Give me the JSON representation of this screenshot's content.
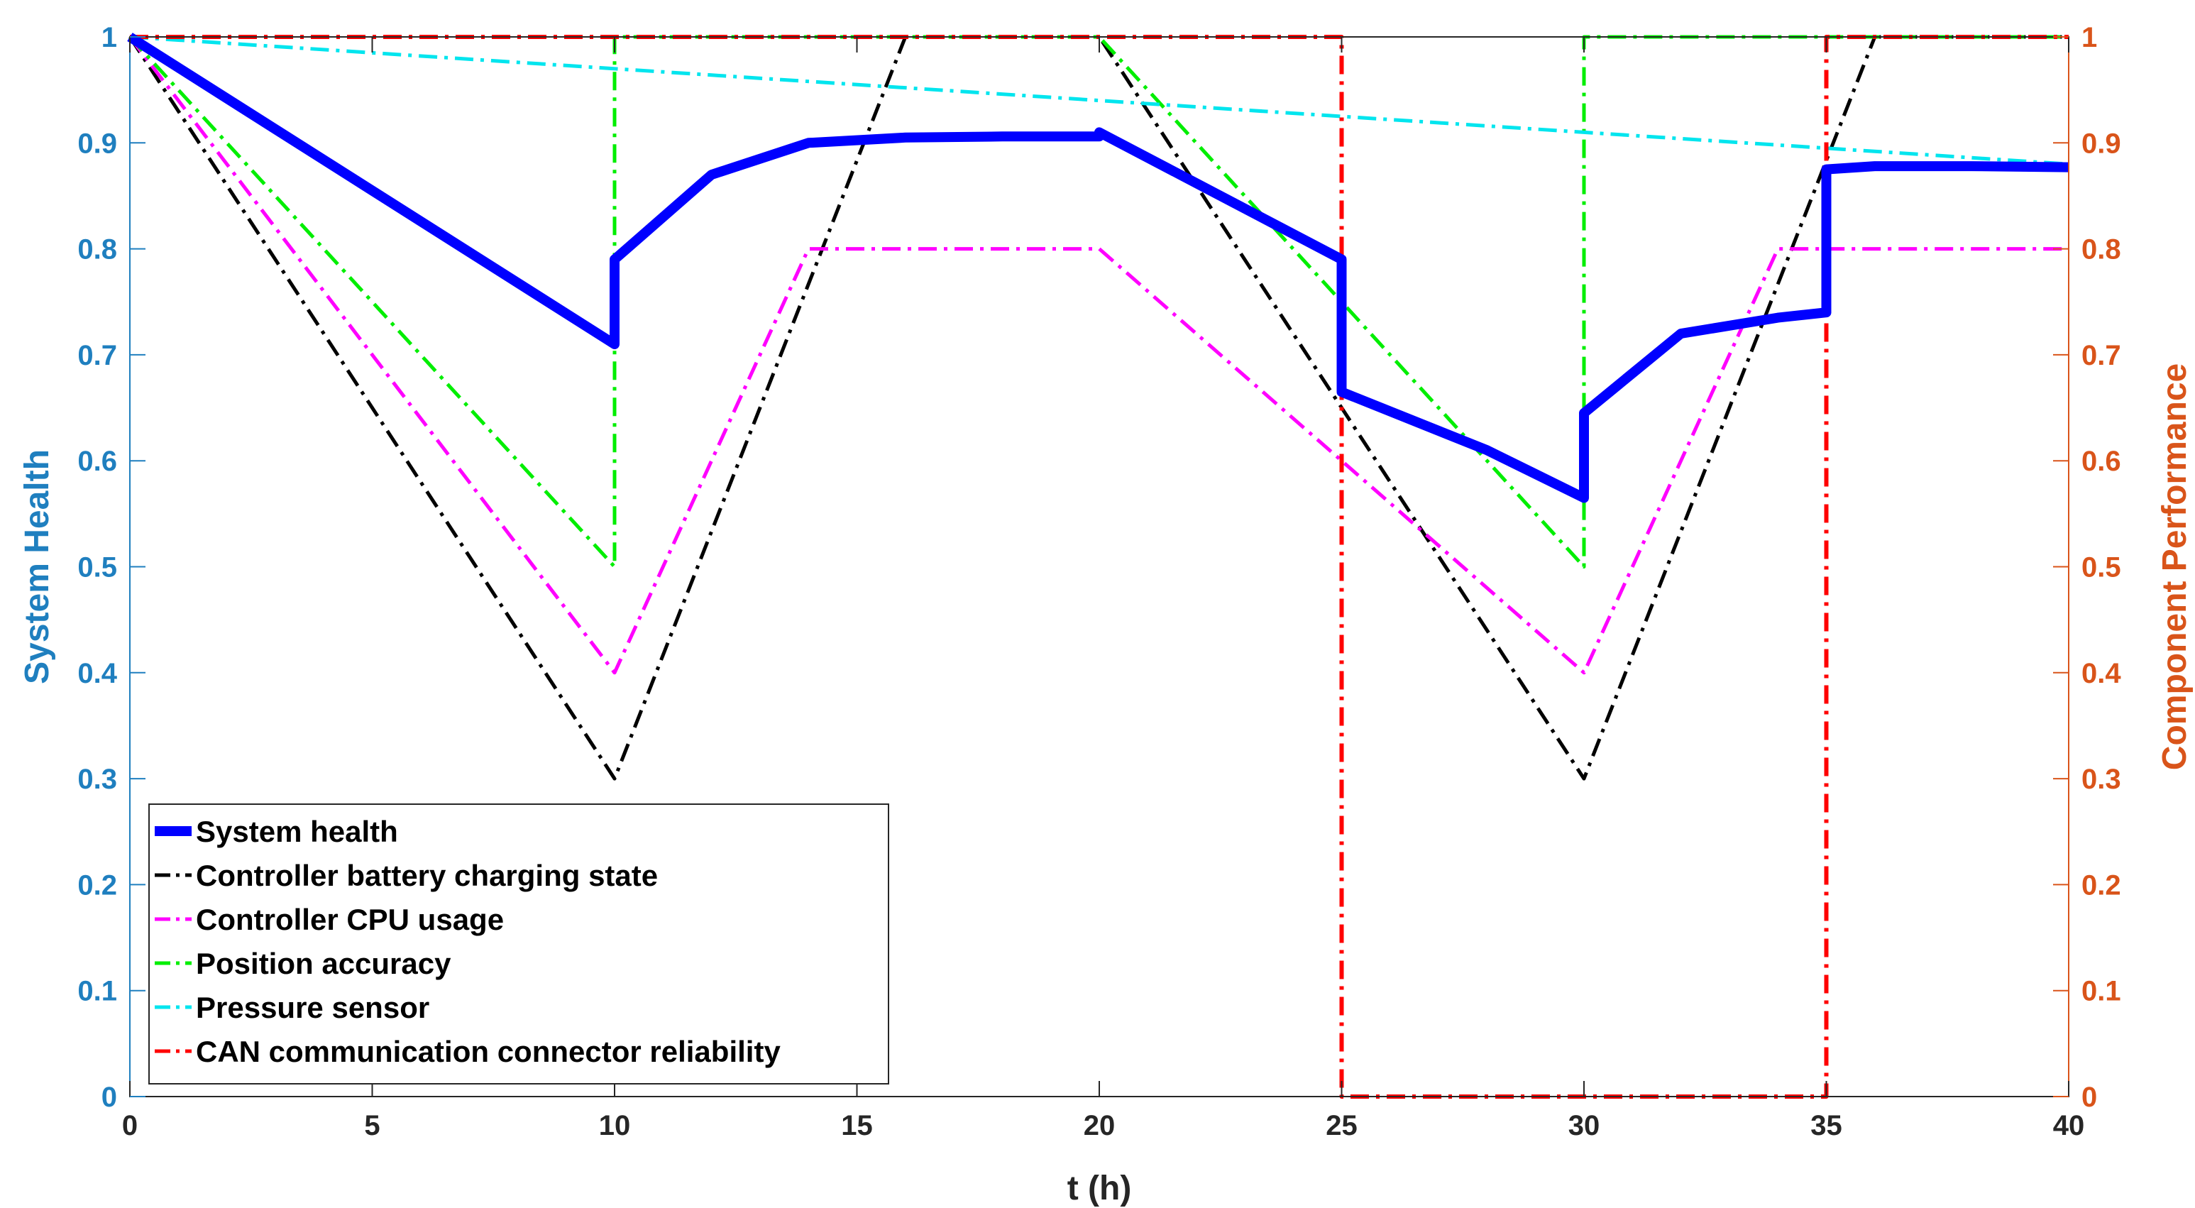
{
  "chart_data": {
    "type": "line",
    "title": "",
    "xlabel": "t (h)",
    "ylabel_left": "System Health",
    "ylabel_right": "Component Performance",
    "xlim": [
      0,
      40
    ],
    "ylim_left": [
      0,
      1
    ],
    "ylim_right": [
      0,
      1
    ],
    "x_ticks": [
      "0",
      "5",
      "10",
      "15",
      "20",
      "25",
      "30",
      "35",
      "40"
    ],
    "x_tick_values": [
      0,
      5,
      10,
      15,
      20,
      25,
      30,
      35,
      40
    ],
    "y_left_ticks": [
      "0",
      "0.1",
      "0.2",
      "0.3",
      "0.4",
      "0.5",
      "0.6",
      "0.7",
      "0.8",
      "0.9",
      "1"
    ],
    "y_right_ticks": [
      "0",
      "0.1",
      "0.2",
      "0.3",
      "0.4",
      "0.5",
      "0.6",
      "0.7",
      "0.8",
      "0.9",
      "1"
    ],
    "y_tick_values": [
      0,
      0.1,
      0.2,
      0.3,
      0.4,
      0.5,
      0.6,
      0.7,
      0.8,
      0.9,
      1
    ],
    "grid": false,
    "legend_position": "bottom-left",
    "series": [
      {
        "name": "System health",
        "color": "#0000ff",
        "style": "solid-thick",
        "x": [
          0,
          10,
          10,
          12,
          14,
          16,
          18,
          20,
          20,
          25,
          25,
          28,
          30,
          30,
          32,
          34,
          35,
          35,
          36,
          38,
          40
        ],
        "y": [
          1.0,
          0.71,
          0.79,
          0.87,
          0.9,
          0.905,
          0.906,
          0.906,
          0.91,
          0.79,
          0.665,
          0.61,
          0.565,
          0.645,
          0.72,
          0.735,
          0.74,
          0.875,
          0.878,
          0.878,
          0.877
        ]
      },
      {
        "name": "Controller battery charging state",
        "color": "#000000",
        "style": "dashdot",
        "x": [
          0,
          10,
          16,
          20,
          30,
          36,
          40
        ],
        "y": [
          1.0,
          0.3,
          1.0,
          1.0,
          0.3,
          1.0,
          1.0
        ]
      },
      {
        "name": "Controller CPU usage",
        "color": "#ff00ff",
        "style": "dashdot",
        "x": [
          0,
          10,
          14,
          20,
          30,
          34,
          40
        ],
        "y": [
          1.0,
          0.4,
          0.8,
          0.8,
          0.4,
          0.8,
          0.8
        ]
      },
      {
        "name": "Position accuracy",
        "color": "#00ee00",
        "style": "dashdot",
        "x": [
          0,
          10,
          10,
          20,
          30,
          30,
          40
        ],
        "y": [
          1.0,
          0.5,
          1.0,
          1.0,
          0.5,
          1.0,
          1.0
        ]
      },
      {
        "name": "Pressure sensor",
        "color": "#00e5ee",
        "style": "dashdot",
        "x": [
          0,
          40
        ],
        "y": [
          1.0,
          0.88
        ]
      },
      {
        "name": "CAN communication connector reliability",
        "color": "#ff0000",
        "style": "dashdot",
        "x": [
          0,
          25,
          25,
          35,
          35,
          40
        ],
        "y": [
          1.0,
          1.0,
          0.0,
          0.0,
          1.0,
          1.0
        ]
      }
    ]
  }
}
